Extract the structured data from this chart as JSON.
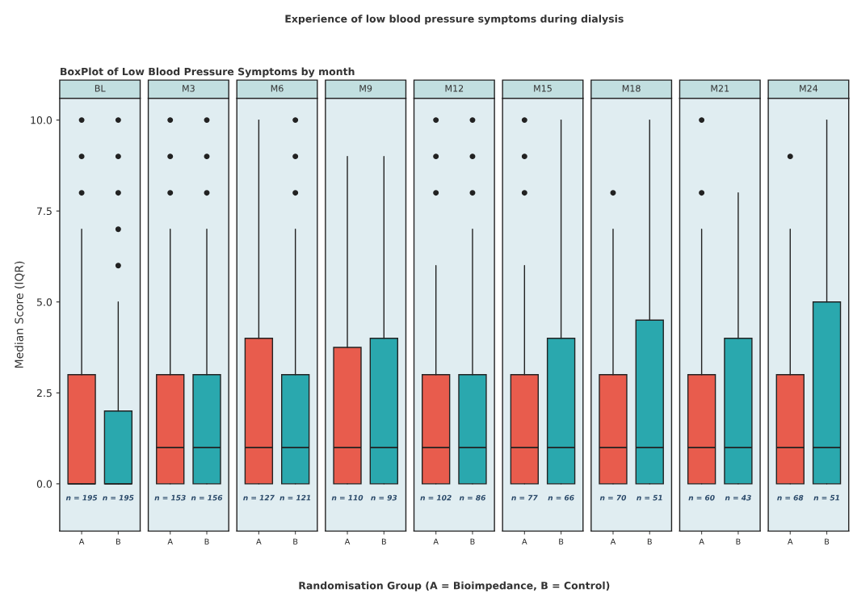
{
  "chart_data": [
    {
      "type": "box",
      "title": "BL",
      "ylabel": "Median Score (IQR)",
      "annotations": [
        "n = 195",
        "n = 195",
        "BoxPlot of Low Blood Pressure Symptoms by month"
      ],
      "categories": [
        "A",
        "B"
      ],
      "colors": [
        "#e85c4d",
        "#2aa8ae"
      ],
      "boxes": [
        {
          "low": 0,
          "q1": 0,
          "median": 0,
          "q3": 3,
          "high": 7,
          "outliers": [
            8,
            9,
            10
          ]
        },
        {
          "low": 0,
          "q1": 0,
          "median": 0,
          "q3": 2,
          "high": 5,
          "outliers": [
            6,
            7,
            8,
            9,
            10
          ]
        }
      ],
      "ylim": [
        -1.3,
        10.6
      ],
      "yticks": [
        {
          "value": 0,
          "label": "0.0"
        },
        {
          "value": 2.5,
          "label": "2.5"
        },
        {
          "value": 5,
          "label": "5.0"
        },
        {
          "value": 7.5,
          "label": "7.5"
        },
        {
          "value": 10,
          "label": "10.0"
        }
      ],
      "grid": false
    },
    {
      "type": "box",
      "title": "M3",
      "annotations": [
        "n = 153",
        "n = 156"
      ],
      "categories": [
        "A",
        "B"
      ],
      "colors": [
        "#e85c4d",
        "#2aa8ae"
      ],
      "boxes": [
        {
          "low": 0,
          "q1": 0,
          "median": 1,
          "q3": 3,
          "high": 7,
          "outliers": [
            8,
            9,
            10
          ]
        },
        {
          "low": 0,
          "q1": 0,
          "median": 1,
          "q3": 3,
          "high": 7,
          "outliers": [
            8,
            9,
            10
          ]
        }
      ],
      "ylim": [
        -1.3,
        10.6
      ],
      "tick_labels": "x",
      "grid": false
    },
    {
      "type": "box",
      "title": "M6",
      "annotations": [
        "n = 127",
        "n = 121"
      ],
      "categories": [
        "A",
        "B"
      ],
      "colors": [
        "#e85c4d",
        "#2aa8ae"
      ],
      "boxes": [
        {
          "low": 0,
          "q1": 0,
          "median": 1,
          "q3": 4,
          "high": 10
        },
        {
          "low": 0,
          "q1": 0,
          "median": 1,
          "q3": 3,
          "high": 7,
          "outliers": [
            8,
            9,
            10
          ]
        }
      ],
      "ylim": [
        -1.3,
        10.6
      ],
      "tick_labels": "x",
      "grid": false
    },
    {
      "type": "box",
      "title": "M9",
      "annotations": [
        "n = 110",
        "n = 93"
      ],
      "categories": [
        "A",
        "B"
      ],
      "colors": [
        "#e85c4d",
        "#2aa8ae"
      ],
      "boxes": [
        {
          "low": 0,
          "q1": 0,
          "median": 1,
          "q3": 3.75,
          "high": 9
        },
        {
          "low": 0,
          "q1": 0,
          "median": 1,
          "q3": 4,
          "high": 9
        }
      ],
      "ylim": [
        -1.3,
        10.6
      ],
      "tick_labels": "x",
      "grid": false
    },
    {
      "type": "box",
      "title": "M12",
      "xlabel": "Randomisation Group (A = Bioimpedance, B = Control)",
      "annotations": [
        "n = 102",
        "n = 86",
        "Experience of low blood pressure symptoms during dialysis"
      ],
      "categories": [
        "A",
        "B"
      ],
      "colors": [
        "#e85c4d",
        "#2aa8ae"
      ],
      "boxes": [
        {
          "low": 0,
          "q1": 0,
          "median": 1,
          "q3": 3,
          "high": 6,
          "outliers": [
            8,
            9,
            10
          ]
        },
        {
          "low": 0,
          "q1": 0,
          "median": 1,
          "q3": 3,
          "high": 7,
          "outliers": [
            8,
            9,
            10
          ]
        }
      ],
      "ylim": [
        -1.3,
        10.6
      ],
      "tick_labels": "x",
      "grid": false
    },
    {
      "type": "box",
      "title": "M15",
      "annotations": [
        "n = 77",
        "n = 66"
      ],
      "categories": [
        "A",
        "B"
      ],
      "colors": [
        "#e85c4d",
        "#2aa8ae"
      ],
      "boxes": [
        {
          "low": 0,
          "q1": 0,
          "median": 1,
          "q3": 3,
          "high": 6,
          "outliers": [
            8,
            9,
            10
          ]
        },
        {
          "low": 0,
          "q1": 0,
          "median": 1,
          "q3": 4,
          "high": 10
        }
      ],
      "ylim": [
        -1.3,
        10.6
      ],
      "tick_labels": "x",
      "grid": false
    },
    {
      "type": "box",
      "title": "M18",
      "annotations": [
        "n = 70",
        "n = 51"
      ],
      "categories": [
        "A",
        "B"
      ],
      "colors": [
        "#e85c4d",
        "#2aa8ae"
      ],
      "boxes": [
        {
          "low": 0,
          "q1": 0,
          "median": 1,
          "q3": 3,
          "high": 7,
          "outliers": [
            8
          ]
        },
        {
          "low": 0,
          "q1": 0,
          "median": 1,
          "q3": 4.5,
          "high": 10
        }
      ],
      "ylim": [
        -1.3,
        10.6
      ],
      "tick_labels": "x",
      "grid": false
    },
    {
      "type": "box",
      "title": "M21",
      "annotations": [
        "n = 60",
        "n = 43"
      ],
      "categories": [
        "A",
        "B"
      ],
      "colors": [
        "#e85c4d",
        "#2aa8ae"
      ],
      "boxes": [
        {
          "low": 0,
          "q1": 0,
          "median": 1,
          "q3": 3,
          "high": 7,
          "outliers": [
            8,
            10
          ]
        },
        {
          "low": 0,
          "q1": 0,
          "median": 1,
          "q3": 4,
          "high": 8
        }
      ],
      "ylim": [
        -1.3,
        10.6
      ],
      "tick_labels": "x",
      "grid": false
    },
    {
      "type": "box",
      "title": "M24",
      "annotations": [
        "n = 68",
        "n = 51"
      ],
      "categories": [
        "A",
        "B"
      ],
      "colors": [
        "#e85c4d",
        "#2aa8ae"
      ],
      "boxes": [
        {
          "low": 0,
          "q1": 0,
          "median": 1,
          "q3": 3,
          "high": 7,
          "outliers": [
            9
          ]
        },
        {
          "low": 0,
          "q1": 0,
          "median": 1,
          "q3": 5,
          "high": 10
        }
      ],
      "ylim": [
        -1.3,
        10.6
      ],
      "tick_labels": "x",
      "grid": false
    }
  ]
}
